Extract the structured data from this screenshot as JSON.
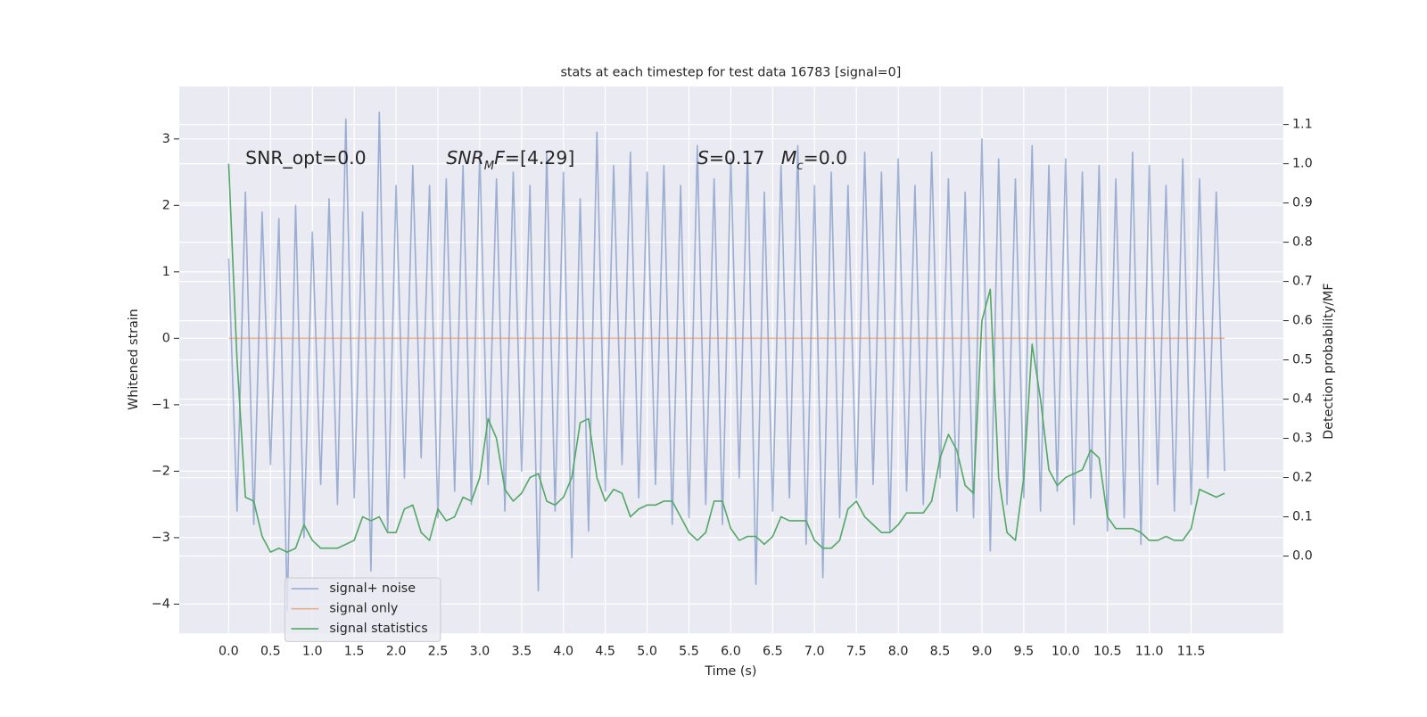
{
  "chart_data": {
    "type": "line",
    "title": "stats at each timestep for test data 16783 [signal=0]",
    "xlabel": "Time (s)",
    "ylabel": "Whitened strain",
    "y2label": "Detection probability/MF",
    "background": "#eaeaf2",
    "grid": true,
    "legend": "lower left",
    "xlim": [
      -0.59,
      12.6
    ],
    "ylim": [
      -4.44,
      3.79
    ],
    "y2lim": [
      -0.197,
      1.197
    ],
    "xticks": [
      {
        "value": 0,
        "label": "0.0"
      },
      0.5,
      {
        "value": 1,
        "label": "1.0"
      },
      1.5,
      {
        "value": 2,
        "label": "2.0"
      },
      2.5,
      {
        "value": 3,
        "label": "3.0"
      },
      3.5,
      {
        "value": 4,
        "label": "4.0"
      },
      4.5,
      {
        "value": 5,
        "label": "5.0"
      },
      5.5,
      {
        "value": 6,
        "label": "6.0"
      },
      6.5,
      {
        "value": 7,
        "label": "7.0"
      },
      7.5,
      {
        "value": 8,
        "label": "8.0"
      },
      8.5,
      {
        "value": 9,
        "label": "9.0"
      },
      9.5,
      {
        "value": 10,
        "label": "10.0"
      },
      10.5,
      {
        "value": 11,
        "label": "11.0"
      },
      11.5
    ],
    "yticks": [
      {
        "value": -4,
        "label": "−4"
      },
      {
        "value": -3,
        "label": "−3"
      },
      {
        "value": -2,
        "label": "−2"
      },
      {
        "value": -1,
        "label": "−1"
      },
      0,
      1,
      2,
      3
    ],
    "y2ticks": [
      {
        "value": 0,
        "label": "0.0"
      },
      0.1,
      0.2,
      0.3,
      0.4,
      0.5,
      0.6,
      0.7,
      0.8,
      0.9,
      {
        "value": 1,
        "label": "1.0"
      },
      1.1
    ],
    "annotations": [
      {
        "parts": [
          {
            "text": "SNR_opt=0.0",
            "style": "normal"
          }
        ],
        "x": 0.2,
        "y": 2.7
      },
      {
        "parts": [
          {
            "text": "SNR",
            "style": "italic"
          },
          {
            "text": "M",
            "style": "italic-sub"
          },
          {
            "text": "F",
            "style": "italic"
          },
          {
            "text": "=[4.29]",
            "style": "normal"
          }
        ],
        "x": 2.6,
        "y": 2.7
      },
      {
        "parts": [
          {
            "text": "S",
            "style": "italic"
          },
          {
            "text": "=0.17",
            "style": "normal"
          }
        ],
        "x": 5.6,
        "y": 2.7
      },
      {
        "parts": [
          {
            "text": "M",
            "style": "italic"
          },
          {
            "text": "c",
            "style": "italic-sub"
          },
          {
            "text": "=0.0",
            "style": "normal"
          }
        ],
        "x": 6.6,
        "y": 2.7
      }
    ],
    "x": [
      0,
      0.1,
      0.2,
      0.3,
      0.4,
      0.5,
      0.6,
      0.7,
      0.8,
      0.9,
      1,
      1.1,
      1.2,
      1.3,
      1.4,
      1.5,
      1.6,
      1.7,
      1.8,
      1.9,
      2,
      2.1,
      2.2,
      2.3,
      2.4,
      2.5,
      2.6,
      2.7,
      2.8,
      2.9,
      3,
      3.1,
      3.2,
      3.3,
      3.4,
      3.5,
      3.6,
      3.7,
      3.8,
      3.9,
      4,
      4.1,
      4.2,
      4.3,
      4.4,
      4.5,
      4.6,
      4.7,
      4.8,
      4.9,
      5,
      5.1,
      5.2,
      5.3,
      5.4,
      5.5,
      5.6,
      5.7,
      5.8,
      5.9,
      6,
      6.1,
      6.2,
      6.3,
      6.4,
      6.5,
      6.6,
      6.7,
      6.8,
      6.9,
      7,
      7.1,
      7.2,
      7.3,
      7.4,
      7.5,
      7.6,
      7.7,
      7.8,
      7.9,
      8,
      8.1,
      8.2,
      8.3,
      8.4,
      8.5,
      8.6,
      8.7,
      8.8,
      8.9,
      9,
      9.1,
      9.2,
      9.3,
      9.4,
      9.5,
      9.6,
      9.7,
      9.8,
      9.9,
      10,
      10.1,
      10.2,
      10.3,
      10.4,
      10.5,
      10.6,
      10.7,
      10.8,
      10.9,
      11,
      11.1,
      11.2,
      11.3,
      11.4,
      11.5,
      11.6,
      11.7,
      11.8,
      11.9
    ],
    "series": [
      {
        "name": "signal+ noise",
        "color": "#4c72b0",
        "alpha": 0.5,
        "axis": "y",
        "values": [
          1.2,
          -2.6,
          2.2,
          -2.8,
          1.9,
          -1.9,
          1.8,
          -4.1,
          2.0,
          -3.0,
          1.6,
          -2.2,
          2.1,
          -2.5,
          3.3,
          -2.4,
          1.9,
          -3.5,
          3.4,
          -2.9,
          2.3,
          -2.1,
          2.6,
          -1.8,
          2.3,
          -2.7,
          2.4,
          -2.3,
          2.6,
          -2.5,
          2.8,
          -2.2,
          2.4,
          -2.6,
          2.5,
          -2.0,
          2.3,
          -3.8,
          2.8,
          -2.6,
          2.5,
          -3.3,
          2.1,
          -2.9,
          3.1,
          -2.3,
          2.6,
          -1.9,
          2.8,
          -2.4,
          2.5,
          -2.2,
          2.6,
          -2.8,
          2.3,
          -2.7,
          2.9,
          -2.5,
          2.4,
          -2.8,
          2.7,
          -2.1,
          2.8,
          -3.7,
          2.2,
          -2.6,
          2.6,
          -2.4,
          2.9,
          -3.1,
          2.3,
          -3.6,
          2.5,
          -2.7,
          2.3,
          -2.4,
          2.8,
          -2.2,
          2.5,
          -2.9,
          2.7,
          -2.3,
          2.3,
          -2.5,
          2.8,
          -2.1,
          2.4,
          -2.6,
          2.2,
          -2.7,
          3.0,
          -3.2,
          2.7,
          -2.5,
          2.4,
          -2.4,
          2.9,
          -2.6,
          2.6,
          -2.3,
          2.7,
          -2.8,
          2.5,
          -2.4,
          2.6,
          -2.9,
          2.4,
          -2.7,
          2.8,
          -3.1,
          2.6,
          -2.2,
          2.3,
          -2.6,
          2.7,
          -2.5,
          2.4,
          -2.1,
          2.2,
          -2.0
        ]
      },
      {
        "name": "signal only",
        "color": "#dd8452",
        "alpha": 0.6,
        "axis": "y",
        "values": [
          0,
          0,
          0,
          0,
          0,
          0,
          0,
          0,
          0,
          0,
          0,
          0,
          0,
          0,
          0,
          0,
          0,
          0,
          0,
          0,
          0,
          0,
          0,
          0,
          0,
          0,
          0,
          0,
          0,
          0,
          0,
          0,
          0,
          0,
          0,
          0,
          0,
          0,
          0,
          0,
          0,
          0,
          0,
          0,
          0,
          0,
          0,
          0,
          0,
          0,
          0,
          0,
          0,
          0,
          0,
          0,
          0,
          0,
          0,
          0,
          0,
          0,
          0,
          0,
          0,
          0,
          0,
          0,
          0,
          0,
          0,
          0,
          0,
          0,
          0,
          0,
          0,
          0,
          0,
          0,
          0,
          0,
          0,
          0,
          0,
          0,
          0,
          0,
          0,
          0,
          0,
          0,
          0,
          0,
          0,
          0,
          0,
          0,
          0,
          0,
          0,
          0,
          0,
          0,
          0,
          0,
          0,
          0,
          0,
          0,
          0,
          0,
          0,
          0,
          0,
          0,
          0,
          0,
          0,
          0
        ]
      },
      {
        "name": "signal statistics",
        "color": "#55a868",
        "alpha": 1,
        "axis": "y2",
        "values": [
          1.0,
          0.5,
          0.15,
          0.14,
          0.05,
          0.01,
          0.02,
          0.01,
          0.02,
          0.08,
          0.04,
          0.02,
          0.02,
          0.02,
          0.03,
          0.04,
          0.1,
          0.09,
          0.1,
          0.06,
          0.06,
          0.12,
          0.13,
          0.06,
          0.04,
          0.12,
          0.09,
          0.1,
          0.15,
          0.14,
          0.2,
          0.35,
          0.3,
          0.17,
          0.14,
          0.16,
          0.2,
          0.21,
          0.14,
          0.13,
          0.15,
          0.2,
          0.34,
          0.35,
          0.2,
          0.14,
          0.17,
          0.16,
          0.1,
          0.12,
          0.13,
          0.13,
          0.14,
          0.14,
          0.1,
          0.06,
          0.04,
          0.06,
          0.14,
          0.14,
          0.07,
          0.04,
          0.05,
          0.05,
          0.03,
          0.05,
          0.1,
          0.09,
          0.09,
          0.09,
          0.04,
          0.02,
          0.02,
          0.04,
          0.12,
          0.14,
          0.1,
          0.08,
          0.06,
          0.06,
          0.08,
          0.11,
          0.11,
          0.11,
          0.14,
          0.25,
          0.31,
          0.27,
          0.18,
          0.16,
          0.6,
          0.68,
          0.2,
          0.06,
          0.04,
          0.2,
          0.54,
          0.4,
          0.22,
          0.18,
          0.2,
          0.21,
          0.22,
          0.27,
          0.25,
          0.1,
          0.07,
          0.07,
          0.07,
          0.06,
          0.04,
          0.04,
          0.05,
          0.04,
          0.04,
          0.07,
          0.17,
          0.16,
          0.15,
          0.16
        ]
      }
    ]
  }
}
